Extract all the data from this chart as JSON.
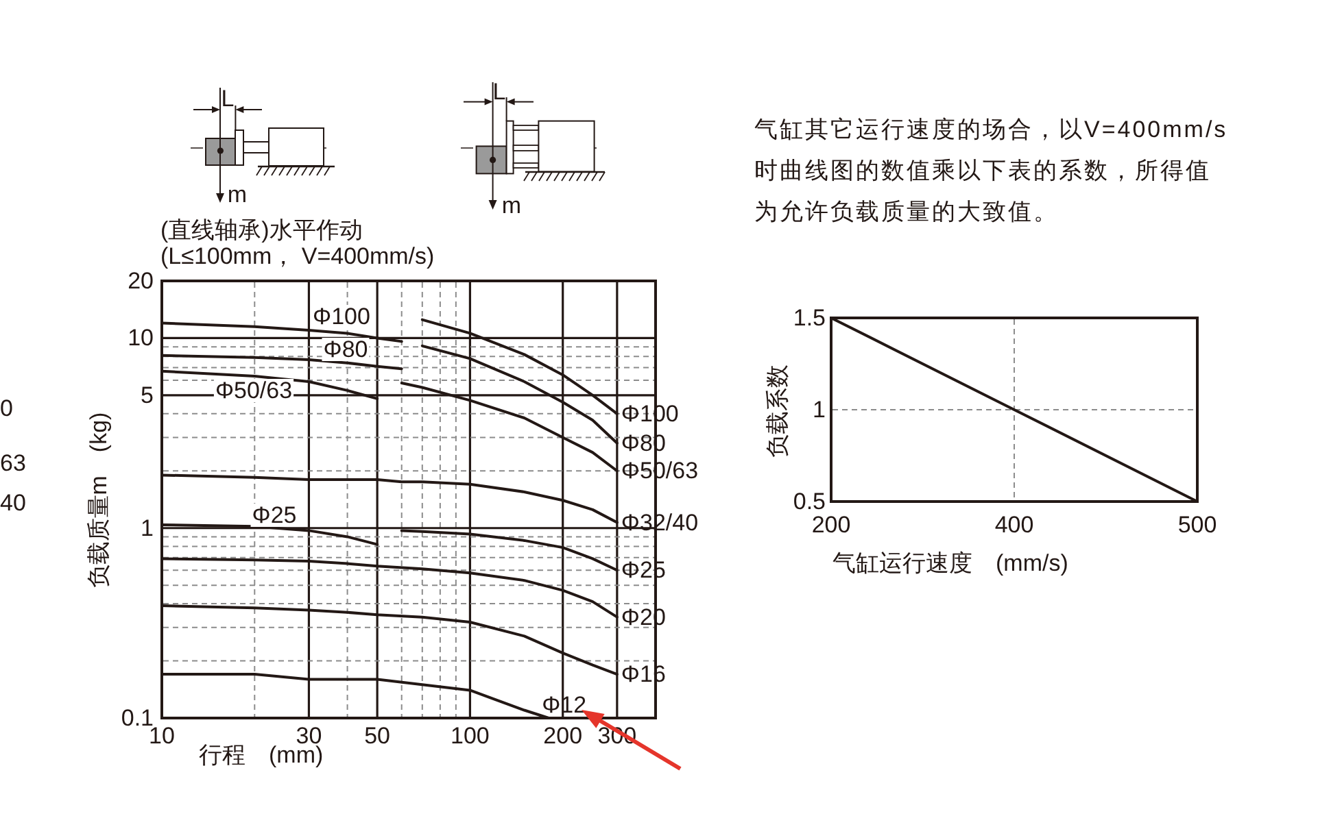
{
  "chart_data": [
    {
      "type": "line",
      "title": "(直线轴承)水平作动",
      "subtitle": "(L≤100mm， V=400mm/s)",
      "xlabel": "行程　(mm)",
      "ylabel": "负载质量m　(kg)",
      "log": "xy",
      "xlim": [
        10,
        400
      ],
      "ylim": [
        0.1,
        20
      ],
      "xticks": [
        10,
        {
          "value": 20,
          "label": null
        },
        30,
        {
          "value": 40,
          "label": null
        },
        50,
        {
          "value": 60,
          "label": null
        },
        {
          "value": 70,
          "label": null
        },
        {
          "value": 80,
          "label": null
        },
        {
          "value": 90,
          "label": null
        },
        100,
        200,
        300
      ],
      "yticks": [
        0.1,
        {
          "value": 0.2,
          "label": null
        },
        {
          "value": 0.3,
          "label": null
        },
        {
          "value": 0.4,
          "label": null
        },
        {
          "value": 0.5,
          "label": null
        },
        {
          "value": 0.6,
          "label": null
        },
        {
          "value": 0.7,
          "label": null
        },
        {
          "value": 0.8,
          "label": null
        },
        {
          "value": 0.9,
          "label": null
        },
        1,
        {
          "value": 2,
          "label": null
        },
        {
          "value": 3,
          "label": null
        },
        {
          "value": 4,
          "label": null
        },
        5,
        {
          "value": 6,
          "label": null
        },
        {
          "value": 7,
          "label": null
        },
        {
          "value": 8,
          "label": null
        },
        {
          "value": 9,
          "label": null
        },
        10,
        20
      ],
      "grid": true,
      "series": [
        {
          "color": "#231815",
          "x": [
            10,
            20,
            30,
            40,
            50,
            60
          ],
          "values": [
            12,
            11.5,
            11,
            10.6,
            10,
            9.6
          ]
        },
        {
          "name": "Φ100",
          "color": "#231815",
          "x": [
            70,
            100,
            150,
            200,
            250,
            300
          ],
          "values": [
            12.5,
            10.6,
            8.2,
            6.4,
            5,
            4
          ]
        },
        {
          "color": "#231815",
          "x": [
            10,
            20,
            30,
            40,
            50,
            60
          ],
          "values": [
            8.1,
            7.9,
            7.7,
            7.4,
            7.1,
            6.9
          ]
        },
        {
          "name": "Φ80",
          "color": "#231815",
          "x": [
            70,
            100,
            150,
            200,
            250,
            300
          ],
          "values": [
            9.1,
            7.8,
            5.9,
            4.6,
            3.7,
            2.8
          ]
        },
        {
          "color": "#231815",
          "x": [
            10,
            20,
            30,
            40,
            50
          ],
          "values": [
            6.7,
            6.3,
            5.9,
            5.3,
            4.8
          ]
        },
        {
          "name": "Φ50/63",
          "color": "#231815",
          "x": [
            60,
            70,
            100,
            150,
            200,
            250,
            300
          ],
          "values": [
            5.8,
            5.5,
            4.7,
            3.8,
            3,
            2.5,
            2
          ]
        },
        {
          "name": "Φ32/40",
          "color": "#231815",
          "x": [
            10,
            20,
            30,
            40,
            50,
            60,
            70,
            100,
            150,
            200,
            250,
            300
          ],
          "values": [
            1.9,
            1.85,
            1.8,
            1.8,
            1.8,
            1.75,
            1.75,
            1.7,
            1.55,
            1.4,
            1.25,
            1.07
          ]
        },
        {
          "color": "#231815",
          "x": [
            10,
            20,
            30,
            40,
            50
          ],
          "values": [
            1.04,
            1.02,
            0.97,
            0.9,
            0.82
          ]
        },
        {
          "name": "Φ25",
          "color": "#231815",
          "x": [
            60,
            70,
            100,
            150,
            200,
            250,
            300
          ],
          "values": [
            0.97,
            0.96,
            0.93,
            0.86,
            0.79,
            0.69,
            0.6
          ]
        },
        {
          "name": "Φ20",
          "color": "#231815",
          "x": [
            10,
            20,
            30,
            40,
            50,
            70,
            100,
            150,
            200,
            250,
            300
          ],
          "values": [
            0.69,
            0.68,
            0.67,
            0.65,
            0.63,
            0.61,
            0.58,
            0.53,
            0.47,
            0.41,
            0.34
          ]
        },
        {
          "name": "Φ16",
          "color": "#231815",
          "x": [
            10,
            20,
            30,
            40,
            50,
            70,
            100,
            150,
            200,
            250,
            300
          ],
          "values": [
            0.39,
            0.38,
            0.37,
            0.36,
            0.35,
            0.34,
            0.32,
            0.27,
            0.22,
            0.19,
            0.17
          ]
        },
        {
          "name": "Φ12",
          "color": "#231815",
          "x": [
            10,
            20,
            30,
            40,
            50,
            70,
            100,
            150,
            180
          ],
          "values": [
            0.17,
            0.17,
            0.16,
            0.16,
            0.16,
            0.15,
            0.14,
            0.11,
            0.1
          ]
        }
      ],
      "annotations": [
        "Φ100",
        "Φ80",
        "Φ50/63",
        "Φ25",
        "L",
        "m",
        "L",
        "m",
        "0",
        "63",
        "40"
      ]
    },
    {
      "type": "line",
      "title": "气缸其它运行速度的场合，以V=400mm/s时曲线图的数值乘以下表的系数，所得值为允许负载质量的大致值。",
      "xlabel": "气缸运行速度　(mm/s)",
      "ylabel": "负载系数",
      "categories": [
        "200",
        "400",
        "500"
      ],
      "values": [
        1.5,
        1,
        0.5
      ],
      "color": "#231815",
      "ylim": [
        0.5,
        1.5
      ],
      "yticks": [
        0.5,
        1,
        1.5
      ],
      "grid": true
    }
  ]
}
